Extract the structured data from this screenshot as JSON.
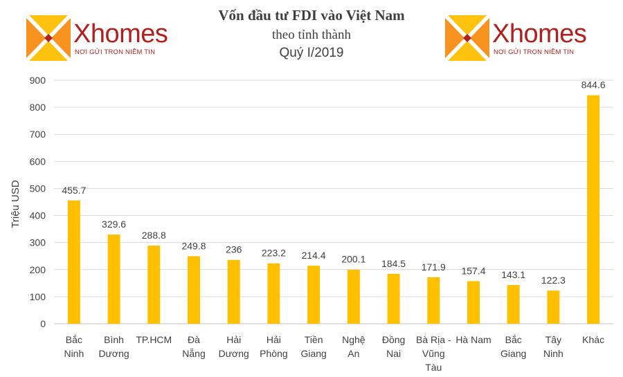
{
  "title": {
    "line1": "Vốn đầu tư FDI vào Việt Nam",
    "line2": "theo tỉnh thành",
    "line3": "Quý I/2019"
  },
  "logo": {
    "word": "Xhomes",
    "tagline": "NƠI GỬI TRỌN NIỀM TIN",
    "colors": {
      "orange": "#f7931e",
      "yellow": "#ffc20e",
      "red": "#b11f1f"
    }
  },
  "chart_data": {
    "type": "bar",
    "ylabel": "Triệu USD",
    "ylim": [
      0,
      900
    ],
    "yticks": [
      0,
      100,
      200,
      300,
      400,
      500,
      600,
      700,
      800,
      900
    ],
    "grid": true,
    "bar_color": "#ffc000",
    "categories": [
      [
        "Bắc",
        "Ninh"
      ],
      [
        "Bình",
        "Dương"
      ],
      [
        "TP.HCM"
      ],
      [
        "Đà",
        "Nẵng"
      ],
      [
        "Hải",
        "Dương"
      ],
      [
        "Hải",
        "Phòng"
      ],
      [
        "Tiền",
        "Giang"
      ],
      [
        "Nghệ",
        "An"
      ],
      [
        "Đồng",
        "Nai"
      ],
      [
        "Bà Rịa -",
        "Vũng",
        "Tàu"
      ],
      [
        "Hà Nam"
      ],
      [
        "Bắc",
        "Giang"
      ],
      [
        "Tây",
        "Ninh"
      ],
      [
        "Khác"
      ]
    ],
    "values": [
      455.7,
      329.6,
      288.8,
      249.8,
      236,
      223.2,
      214.4,
      200.1,
      184.5,
      171.9,
      157.4,
      143.1,
      122.3,
      844.6
    ],
    "value_labels": [
      "455.7",
      "329.6",
      "288.8",
      "249.8",
      "236",
      "223.2",
      "214.4",
      "200.1",
      "184.5",
      "171.9",
      "157.4",
      "143.1",
      "122.3",
      "844.6"
    ]
  }
}
